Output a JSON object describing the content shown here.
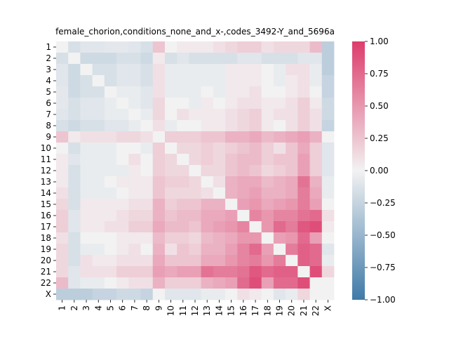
{
  "chart_data": {
    "type": "heatmap",
    "title": "female_chorion,conditions_none_and_x-,codes_3492-Y_and_5696a",
    "labels": [
      "1",
      "2",
      "3",
      "4",
      "5",
      "6",
      "7",
      "8",
      "9",
      "10",
      "11",
      "12",
      "13",
      "14",
      "15",
      "16",
      "17",
      "18",
      "19",
      "20",
      "21",
      "22",
      "X"
    ],
    "vmin": -1.0,
    "vmax": 1.0,
    "colorbar_ticks": [
      1.0,
      0.75,
      0.5,
      0.25,
      0.0,
      -0.25,
      -0.5,
      -0.75,
      -1.0
    ],
    "colorbar_tick_labels": [
      "1.00",
      "0.75",
      "0.50",
      "0.25",
      "0.00",
      "−0.25",
      "−0.50",
      "−0.75",
      "−1.00"
    ],
    "colormap": {
      "low": "#3f7aa8",
      "mid": "#f2f2f2",
      "high": "#dd3c6c"
    },
    "values": [
      [
        0.0,
        -0.15,
        -0.1,
        -0.1,
        -0.08,
        -0.08,
        -0.1,
        -0.15,
        0.25,
        0.0,
        0.05,
        0.05,
        0.05,
        0.1,
        0.15,
        0.2,
        0.2,
        0.1,
        0.15,
        0.15,
        0.15,
        0.3,
        -0.3
      ],
      [
        -0.15,
        0.0,
        -0.2,
        -0.2,
        -0.2,
        -0.15,
        -0.15,
        -0.2,
        0.05,
        -0.15,
        -0.1,
        -0.15,
        -0.15,
        -0.15,
        -0.15,
        -0.1,
        -0.1,
        -0.15,
        -0.15,
        -0.15,
        -0.1,
        -0.1,
        -0.3
      ],
      [
        -0.1,
        -0.2,
        0.0,
        -0.15,
        -0.15,
        -0.1,
        -0.1,
        -0.15,
        0.1,
        -0.05,
        -0.05,
        -0.05,
        -0.05,
        -0.05,
        0.05,
        0.05,
        0.05,
        0.0,
        -0.05,
        0.1,
        0.1,
        -0.05,
        -0.3
      ],
      [
        -0.1,
        -0.2,
        -0.15,
        0.0,
        -0.15,
        -0.1,
        -0.1,
        -0.15,
        0.1,
        -0.05,
        -0.05,
        -0.05,
        -0.05,
        -0.05,
        0.05,
        0.05,
        0.05,
        0.0,
        -0.05,
        0.05,
        0.1,
        -0.05,
        -0.25
      ],
      [
        -0.08,
        -0.2,
        -0.15,
        -0.15,
        0.0,
        -0.05,
        -0.05,
        -0.1,
        0.1,
        -0.05,
        -0.05,
        -0.05,
        0.0,
        -0.05,
        0.05,
        0.05,
        0.1,
        0.0,
        0.0,
        0.05,
        0.1,
        0.0,
        -0.25
      ],
      [
        -0.08,
        -0.15,
        -0.1,
        -0.1,
        -0.05,
        0.0,
        -0.05,
        -0.1,
        0.15,
        0.0,
        0.0,
        -0.05,
        0.05,
        0.0,
        0.05,
        0.1,
        0.1,
        0.05,
        0.05,
        0.1,
        0.2,
        0.05,
        -0.2
      ],
      [
        -0.1,
        -0.15,
        -0.1,
        -0.1,
        -0.05,
        -0.05,
        0.0,
        -0.05,
        0.15,
        0.0,
        0.1,
        0.05,
        0.05,
        0.05,
        0.1,
        0.15,
        0.2,
        0.05,
        0.1,
        0.1,
        0.2,
        0.1,
        -0.2
      ],
      [
        -0.15,
        -0.2,
        -0.15,
        -0.15,
        -0.1,
        -0.1,
        -0.05,
        0.0,
        0.1,
        -0.05,
        0.0,
        0.0,
        0.05,
        0.05,
        0.1,
        0.15,
        0.2,
        0.05,
        0.0,
        0.1,
        0.2,
        0.1,
        -0.25
      ],
      [
        0.25,
        0.05,
        0.1,
        0.1,
        0.1,
        0.15,
        0.15,
        0.1,
        0.0,
        0.2,
        0.2,
        0.2,
        0.25,
        0.25,
        0.35,
        0.35,
        0.4,
        0.3,
        0.35,
        0.4,
        0.45,
        0.35,
        0.0
      ],
      [
        0.0,
        -0.15,
        -0.05,
        -0.05,
        -0.05,
        0.0,
        0.0,
        -0.05,
        0.2,
        0.0,
        0.15,
        0.15,
        0.2,
        0.15,
        0.2,
        0.25,
        0.3,
        0.2,
        0.1,
        0.25,
        0.4,
        0.2,
        -0.1
      ],
      [
        0.05,
        -0.1,
        -0.05,
        -0.05,
        -0.05,
        0.0,
        0.1,
        0.0,
        0.2,
        0.15,
        0.0,
        0.15,
        0.2,
        0.15,
        0.25,
        0.3,
        0.3,
        0.2,
        0.25,
        0.25,
        0.45,
        0.2,
        -0.1
      ],
      [
        0.05,
        -0.15,
        -0.05,
        -0.05,
        -0.05,
        -0.05,
        0.05,
        0.0,
        0.2,
        0.15,
        0.15,
        0.0,
        0.15,
        0.15,
        0.25,
        0.3,
        0.25,
        0.15,
        0.2,
        0.25,
        0.45,
        0.2,
        -0.1
      ],
      [
        0.05,
        -0.15,
        -0.05,
        -0.05,
        0.0,
        0.05,
        0.05,
        0.05,
        0.25,
        0.2,
        0.2,
        0.15,
        0.0,
        0.1,
        0.35,
        0.4,
        0.4,
        0.3,
        0.35,
        0.4,
        0.7,
        0.35,
        -0.05
      ],
      [
        0.1,
        -0.15,
        -0.05,
        -0.05,
        -0.05,
        0.0,
        0.05,
        0.05,
        0.25,
        0.15,
        0.15,
        0.15,
        0.1,
        0.0,
        0.35,
        0.4,
        0.45,
        0.35,
        0.35,
        0.4,
        0.65,
        0.4,
        -0.05
      ],
      [
        0.15,
        -0.15,
        0.05,
        0.05,
        0.05,
        0.05,
        0.1,
        0.1,
        0.35,
        0.2,
        0.25,
        0.25,
        0.35,
        0.35,
        0.0,
        0.45,
        0.5,
        0.4,
        0.45,
        0.5,
        0.65,
        0.45,
        0.0
      ],
      [
        0.2,
        -0.1,
        0.05,
        0.05,
        0.05,
        0.1,
        0.15,
        0.15,
        0.35,
        0.25,
        0.3,
        0.3,
        0.4,
        0.4,
        0.45,
        0.0,
        0.6,
        0.5,
        0.6,
        0.6,
        0.7,
        0.75,
        0.1
      ],
      [
        0.2,
        -0.1,
        0.05,
        0.05,
        0.1,
        0.1,
        0.2,
        0.2,
        0.4,
        0.3,
        0.3,
        0.25,
        0.4,
        0.45,
        0.5,
        0.6,
        0.0,
        0.5,
        0.75,
        0.65,
        0.85,
        0.9,
        0.05
      ],
      [
        0.1,
        -0.15,
        0.0,
        0.0,
        0.0,
        0.05,
        0.05,
        0.05,
        0.3,
        0.2,
        0.2,
        0.15,
        0.3,
        0.35,
        0.4,
        0.5,
        0.5,
        0.0,
        0.45,
        0.5,
        0.75,
        0.45,
        0.0
      ],
      [
        0.15,
        -0.15,
        -0.05,
        -0.05,
        0.0,
        0.05,
        0.1,
        0.0,
        0.35,
        0.1,
        0.25,
        0.2,
        0.35,
        0.35,
        0.45,
        0.6,
        0.75,
        0.45,
        0.0,
        0.65,
        0.8,
        0.75,
        -0.1
      ],
      [
        0.15,
        -0.15,
        0.1,
        0.05,
        0.05,
        0.1,
        0.1,
        0.1,
        0.4,
        0.25,
        0.25,
        0.25,
        0.4,
        0.4,
        0.5,
        0.6,
        0.65,
        0.5,
        0.65,
        0.0,
        0.8,
        0.75,
        -0.05
      ],
      [
        0.15,
        -0.1,
        0.1,
        0.1,
        0.1,
        0.2,
        0.2,
        0.2,
        0.45,
        0.4,
        0.45,
        0.45,
        0.7,
        0.65,
        0.65,
        0.7,
        0.85,
        0.75,
        0.8,
        0.8,
        0.0,
        0.9,
        0.15
      ],
      [
        0.3,
        -0.1,
        -0.05,
        -0.05,
        0.0,
        0.05,
        0.1,
        0.1,
        0.35,
        0.2,
        0.2,
        0.2,
        0.35,
        0.4,
        0.45,
        0.75,
        0.9,
        0.45,
        0.75,
        0.75,
        0.9,
        0.0,
        0.0
      ],
      [
        -0.3,
        -0.3,
        -0.3,
        -0.25,
        -0.25,
        -0.2,
        -0.2,
        -0.25,
        0.0,
        -0.1,
        -0.1,
        -0.1,
        -0.05,
        -0.05,
        0.0,
        0.1,
        0.05,
        0.0,
        -0.1,
        -0.05,
        0.15,
        0.0,
        0.0
      ]
    ]
  }
}
